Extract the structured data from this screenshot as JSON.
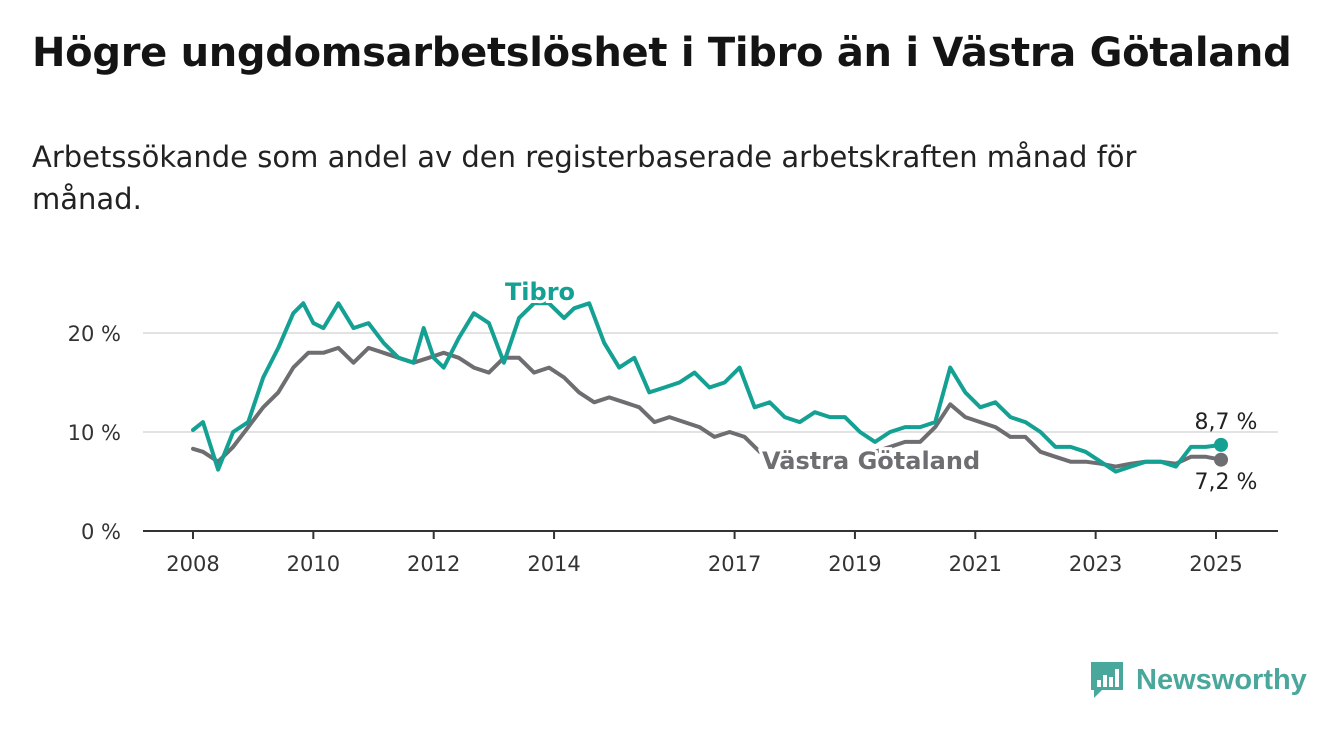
{
  "header": {
    "title": "Högre ungdomsarbetslöshet i Tibro än i Västra Götaland",
    "subtitle": "Arbetssökande som andel av den registerbaserade arbetskraften månad för månad."
  },
  "branding": {
    "name": "Newsworthy",
    "icon": "newsworthy-logo-icon",
    "color": "#4aa79b"
  },
  "chart_data": {
    "type": "line",
    "title": "Högre ungdomsarbetslöshet i Tibro än i Västra Götaland",
    "xlabel": "",
    "ylabel": "",
    "x_ticks": [
      "2008",
      "2010",
      "2012",
      "2014",
      "2017",
      "2019",
      "2021",
      "2023",
      "2025"
    ],
    "y_ticks": [
      "0 %",
      "10 %",
      "20 %"
    ],
    "ylim": [
      0,
      25
    ],
    "xlim": [
      "2007-10",
      "2025-12"
    ],
    "grid": true,
    "series": [
      {
        "name": "Tibro",
        "color": "#14a193",
        "end_label": "8,7 %",
        "points": [
          [
            "2008-01",
            10.2
          ],
          [
            "2008-03",
            11.0
          ],
          [
            "2008-06",
            6.2
          ],
          [
            "2008-09",
            10.0
          ],
          [
            "2008-12",
            11.0
          ],
          [
            "2009-03",
            15.5
          ],
          [
            "2009-06",
            18.5
          ],
          [
            "2009-09",
            22.0
          ],
          [
            "2009-11",
            23.0
          ],
          [
            "2010-01",
            21.0
          ],
          [
            "2010-03",
            20.5
          ],
          [
            "2010-06",
            23.0
          ],
          [
            "2010-09",
            20.5
          ],
          [
            "2010-12",
            21.0
          ],
          [
            "2011-03",
            19.0
          ],
          [
            "2011-06",
            17.5
          ],
          [
            "2011-09",
            17.0
          ],
          [
            "2011-11",
            20.5
          ],
          [
            "2012-01",
            17.5
          ],
          [
            "2012-03",
            16.5
          ],
          [
            "2012-06",
            19.5
          ],
          [
            "2012-09",
            22.0
          ],
          [
            "2012-12",
            21.0
          ],
          [
            "2013-03",
            17.0
          ],
          [
            "2013-06",
            21.5
          ],
          [
            "2013-09",
            23.0
          ],
          [
            "2013-12",
            23.0
          ],
          [
            "2014-03",
            21.5
          ],
          [
            "2014-05",
            22.5
          ],
          [
            "2014-08",
            23.0
          ],
          [
            "2014-11",
            19.0
          ],
          [
            "2015-02",
            16.5
          ],
          [
            "2015-05",
            17.5
          ],
          [
            "2015-08",
            14.0
          ],
          [
            "2015-11",
            14.5
          ],
          [
            "2016-02",
            15.0
          ],
          [
            "2016-05",
            16.0
          ],
          [
            "2016-08",
            14.5
          ],
          [
            "2016-11",
            15.0
          ],
          [
            "2017-02",
            16.5
          ],
          [
            "2017-05",
            12.5
          ],
          [
            "2017-08",
            13.0
          ],
          [
            "2017-11",
            11.5
          ],
          [
            "2018-02",
            11.0
          ],
          [
            "2018-05",
            12.0
          ],
          [
            "2018-08",
            11.5
          ],
          [
            "2018-11",
            11.5
          ],
          [
            "2019-02",
            10.0
          ],
          [
            "2019-05",
            9.0
          ],
          [
            "2019-08",
            10.0
          ],
          [
            "2019-11",
            10.5
          ],
          [
            "2020-02",
            10.5
          ],
          [
            "2020-05",
            11.0
          ],
          [
            "2020-08",
            16.5
          ],
          [
            "2020-11",
            14.0
          ],
          [
            "2021-02",
            12.5
          ],
          [
            "2021-05",
            13.0
          ],
          [
            "2021-08",
            11.5
          ],
          [
            "2021-11",
            11.0
          ],
          [
            "2022-02",
            10.0
          ],
          [
            "2022-05",
            8.5
          ],
          [
            "2022-08",
            8.5
          ],
          [
            "2022-11",
            8.0
          ],
          [
            "2023-02",
            7.0
          ],
          [
            "2023-05",
            6.0
          ],
          [
            "2023-08",
            6.5
          ],
          [
            "2023-11",
            7.0
          ],
          [
            "2024-02",
            7.0
          ],
          [
            "2024-05",
            6.5
          ],
          [
            "2024-08",
            8.5
          ],
          [
            "2024-11",
            8.5
          ],
          [
            "2025-02",
            8.7
          ]
        ]
      },
      {
        "name": "Västra Götaland",
        "color": "#6e6e72",
        "end_label": "7,2 %",
        "points": [
          [
            "2008-01",
            8.3
          ],
          [
            "2008-03",
            8.0
          ],
          [
            "2008-06",
            7.0
          ],
          [
            "2008-09",
            8.5
          ],
          [
            "2008-12",
            10.5
          ],
          [
            "2009-03",
            12.5
          ],
          [
            "2009-06",
            14.0
          ],
          [
            "2009-09",
            16.5
          ],
          [
            "2009-12",
            18.0
          ],
          [
            "2010-03",
            18.0
          ],
          [
            "2010-06",
            18.5
          ],
          [
            "2010-09",
            17.0
          ],
          [
            "2010-12",
            18.5
          ],
          [
            "2011-03",
            18.0
          ],
          [
            "2011-06",
            17.5
          ],
          [
            "2011-09",
            17.0
          ],
          [
            "2011-12",
            17.5
          ],
          [
            "2012-03",
            18.0
          ],
          [
            "2012-06",
            17.5
          ],
          [
            "2012-09",
            16.5
          ],
          [
            "2012-12",
            16.0
          ],
          [
            "2013-03",
            17.5
          ],
          [
            "2013-06",
            17.5
          ],
          [
            "2013-09",
            16.0
          ],
          [
            "2013-12",
            16.5
          ],
          [
            "2014-03",
            15.5
          ],
          [
            "2014-06",
            14.0
          ],
          [
            "2014-09",
            13.0
          ],
          [
            "2014-12",
            13.5
          ],
          [
            "2015-03",
            13.0
          ],
          [
            "2015-06",
            12.5
          ],
          [
            "2015-09",
            11.0
          ],
          [
            "2015-12",
            11.5
          ],
          [
            "2016-03",
            11.0
          ],
          [
            "2016-06",
            10.5
          ],
          [
            "2016-09",
            9.5
          ],
          [
            "2016-12",
            10.0
          ],
          [
            "2017-03",
            9.5
          ],
          [
            "2017-06",
            8.0
          ],
          [
            "2019-05",
            8.0
          ],
          [
            "2019-08",
            8.5
          ],
          [
            "2019-11",
            9.0
          ],
          [
            "2020-02",
            9.0
          ],
          [
            "2020-05",
            10.5
          ],
          [
            "2020-08",
            12.8
          ],
          [
            "2020-11",
            11.5
          ],
          [
            "2021-02",
            11.0
          ],
          [
            "2021-05",
            10.5
          ],
          [
            "2021-08",
            9.5
          ],
          [
            "2021-11",
            9.5
          ],
          [
            "2022-02",
            8.0
          ],
          [
            "2022-05",
            7.5
          ],
          [
            "2022-08",
            7.0
          ],
          [
            "2022-11",
            7.0
          ],
          [
            "2023-02",
            6.8
          ],
          [
            "2023-05",
            6.5
          ],
          [
            "2023-08",
            6.8
          ],
          [
            "2023-11",
            7.0
          ],
          [
            "2024-02",
            7.0
          ],
          [
            "2024-05",
            6.8
          ],
          [
            "2024-08",
            7.5
          ],
          [
            "2024-11",
            7.5
          ],
          [
            "2025-02",
            7.2
          ]
        ]
      }
    ]
  }
}
